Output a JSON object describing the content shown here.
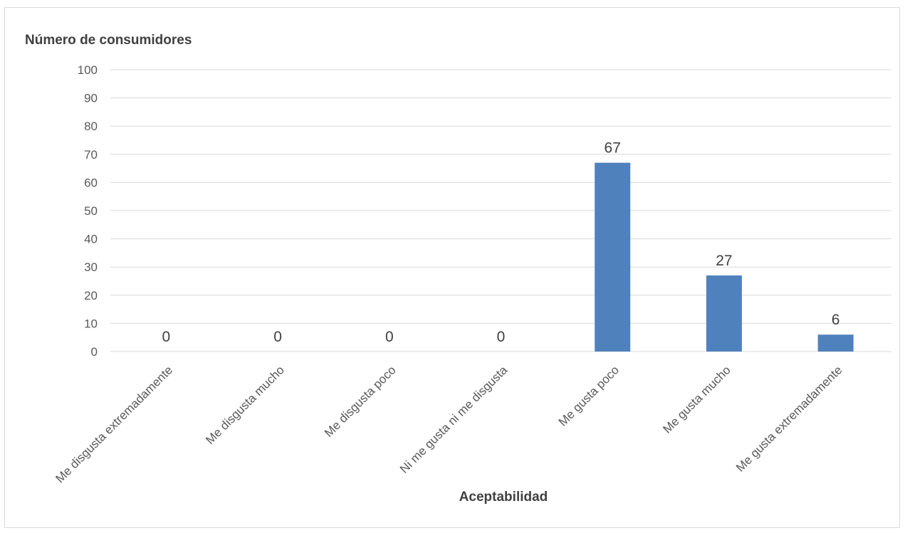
{
  "chart_data": {
    "type": "bar",
    "title": "",
    "ylabel": "Número de consumidores",
    "xlabel": "Aceptabilidad",
    "categories": [
      "Me disgusta extremadamente",
      "Me disgusta mucho",
      "Me disgusta poco",
      "Ni me gusta ni me disgusta",
      "Me gusta poco",
      "Me gusta mucho",
      "Me gusta extremadamente"
    ],
    "values": [
      0,
      0,
      0,
      0,
      67,
      27,
      6
    ],
    "ylim": [
      0,
      100
    ],
    "ytick_step": 10,
    "grid": true,
    "legend": "none",
    "data_labels": true,
    "bar_color": "#4f81bd",
    "grid_color": "#d9d9d9"
  }
}
